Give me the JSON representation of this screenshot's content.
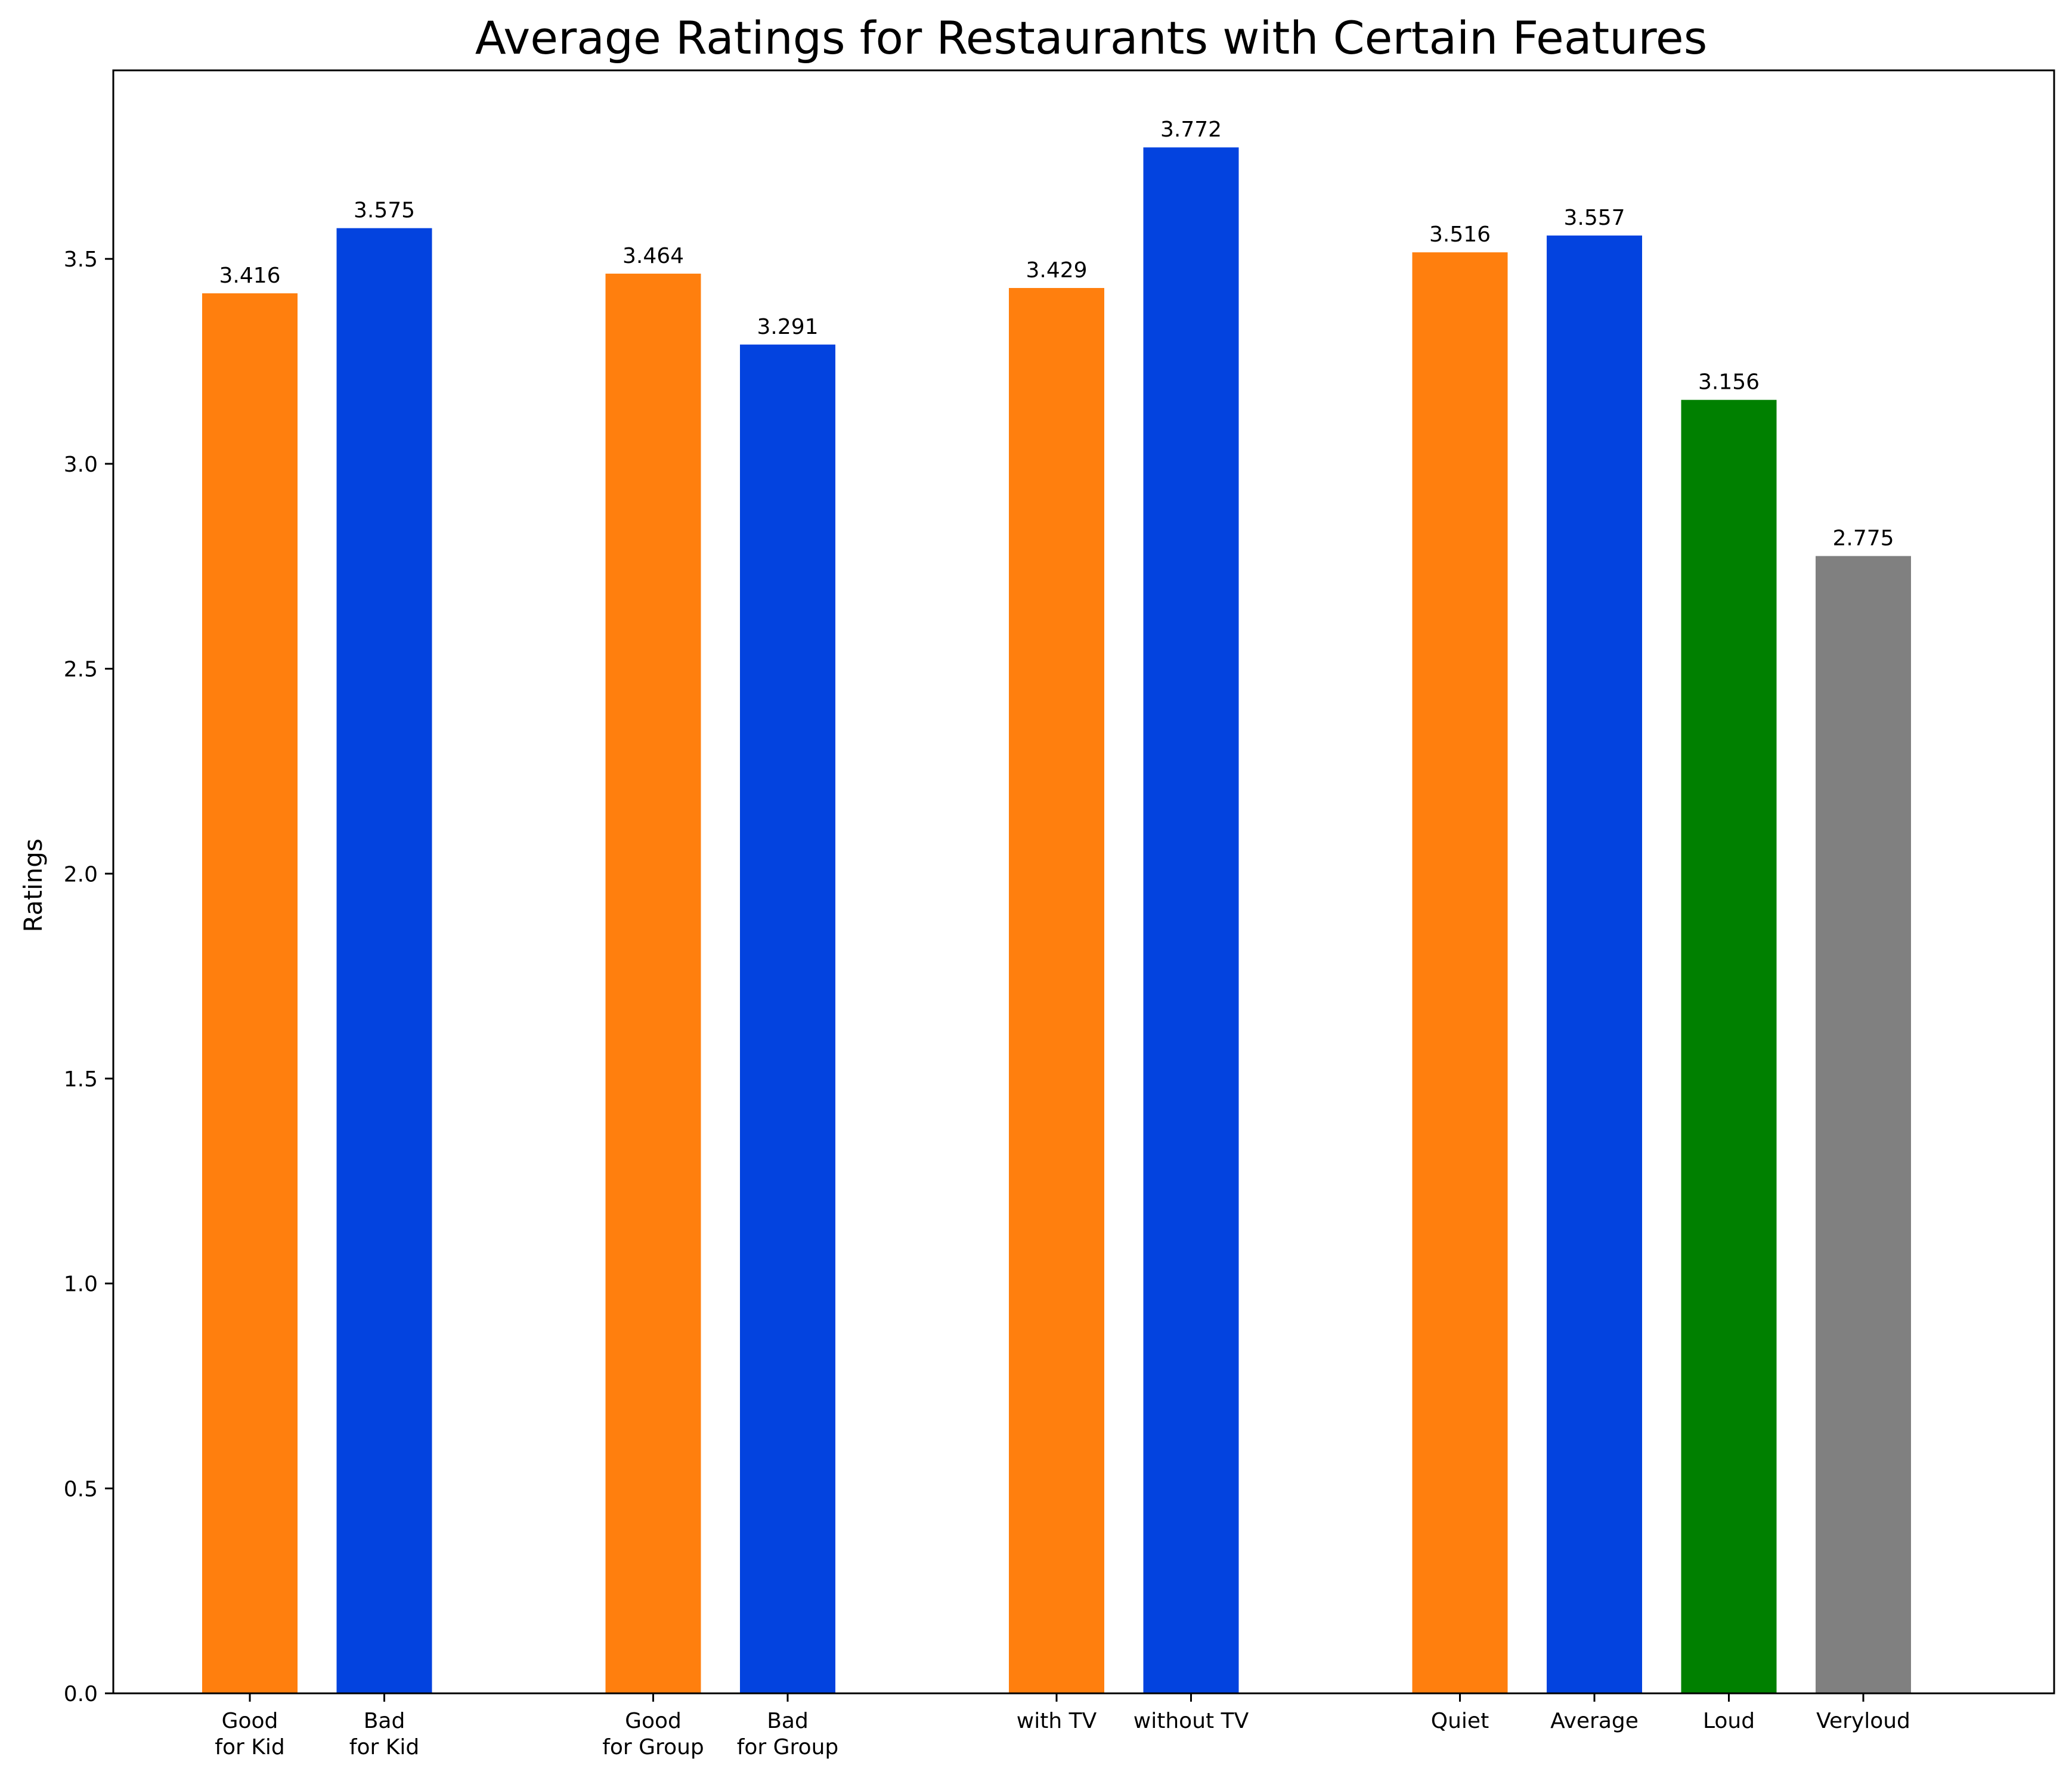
{
  "chart_data": {
    "type": "bar",
    "title": "Average Ratings for Restaurants with Certain Features",
    "xlabel": "",
    "ylabel": "Ratings",
    "ylim": [
      0,
      3.96
    ],
    "yticks": [
      "0.0",
      "0.5",
      "1.0",
      "1.5",
      "2.0",
      "2.5",
      "3.0",
      "3.5"
    ],
    "grid": false,
    "legend": "none",
    "groups": [
      {
        "bars": [
          {
            "label": "Good\nfor Kid",
            "value": 3.416,
            "value_label": "3.416",
            "color": "#ff7f0e"
          },
          {
            "label": "Bad\nfor Kid",
            "value": 3.575,
            "value_label": "3.575",
            "color": "#0343df"
          }
        ]
      },
      {
        "bars": [
          {
            "label": "Good\nfor Group",
            "value": 3.464,
            "value_label": "3.464",
            "color": "#ff7f0e"
          },
          {
            "label": "Bad\nfor Group",
            "value": 3.291,
            "value_label": "3.291",
            "color": "#0343df"
          }
        ]
      },
      {
        "bars": [
          {
            "label": "with TV",
            "value": 3.429,
            "value_label": "3.429",
            "color": "#ff7f0e"
          },
          {
            "label": "without TV",
            "value": 3.772,
            "value_label": "3.772",
            "color": "#0343df"
          }
        ]
      },
      {
        "bars": [
          {
            "label": "Quiet",
            "value": 3.516,
            "value_label": "3.516",
            "color": "#ff7f0e"
          },
          {
            "label": "Average",
            "value": 3.557,
            "value_label": "3.557",
            "color": "#0343df"
          },
          {
            "label": "Loud",
            "value": 3.156,
            "value_label": "3.156",
            "color": "#008000"
          },
          {
            "label": "Veryloud",
            "value": 2.775,
            "value_label": "2.775",
            "color": "#808080"
          }
        ]
      }
    ]
  }
}
